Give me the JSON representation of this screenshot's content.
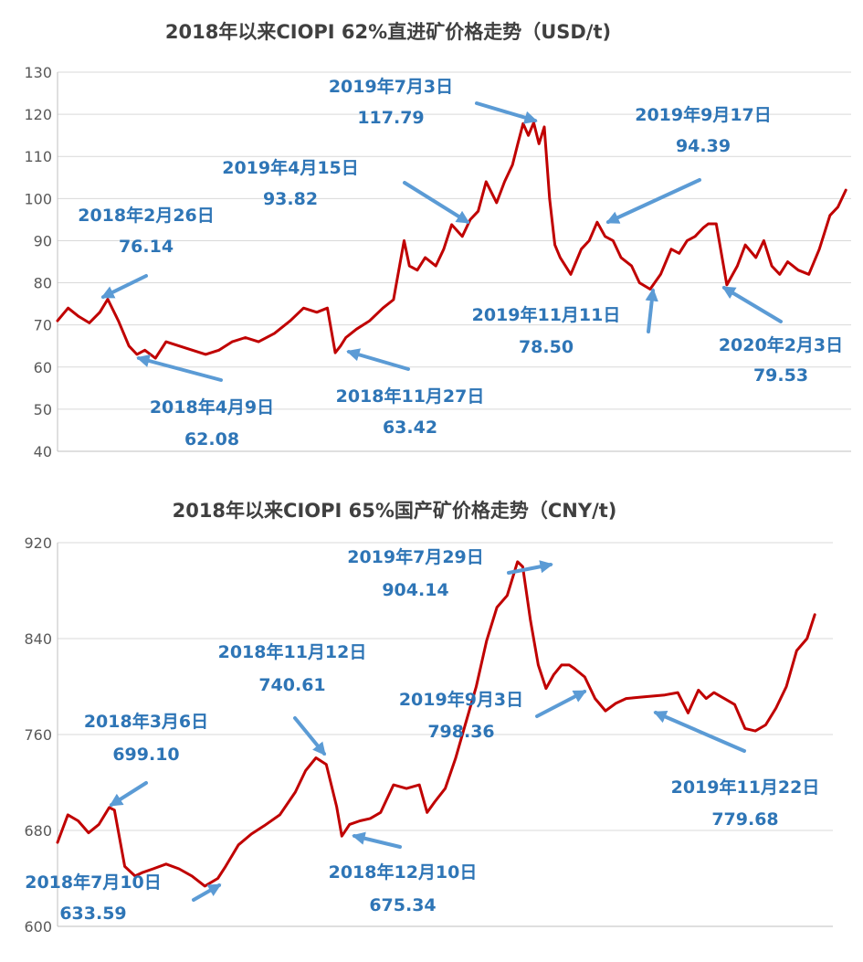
{
  "colors": {
    "series": "#C00000",
    "annotation": "#2E75B6",
    "arrow": "#5B9BD5",
    "grid": "#D9D9D9",
    "title": "#404040"
  },
  "chart_data": [
    {
      "type": "line",
      "title": "2018年以来CIOPI 62%直进矿价格走势（USD/t)",
      "xlabel": "",
      "ylabel": "",
      "ylim": [
        40,
        130
      ],
      "yticks": [
        40,
        50,
        60,
        70,
        80,
        90,
        100,
        110,
        120,
        130
      ],
      "grid": true,
      "x_unit": "months since 2018-01",
      "series": [
        {
          "x": [
            0.0,
            0.4,
            0.8,
            1.2,
            1.6,
            1.9,
            2.3,
            2.7,
            3.0,
            3.3,
            3.7,
            4.1,
            4.6,
            5.1,
            5.6,
            6.1,
            6.6,
            7.1,
            7.6,
            8.2,
            8.8,
            9.3,
            9.8,
            10.2,
            10.5,
            10.7,
            10.9,
            11.3,
            11.8,
            12.3,
            12.7,
            13.1,
            13.3,
            13.6,
            13.9,
            14.3,
            14.6,
            14.9,
            15.3,
            15.6,
            15.9,
            16.2,
            16.6,
            16.9,
            17.2,
            17.4,
            17.6,
            17.8,
            18.0,
            18.2,
            18.4,
            18.6,
            18.8,
            19.0,
            19.4,
            19.8,
            20.1,
            20.4,
            20.7,
            21.0,
            21.3,
            21.7,
            22.0,
            22.4,
            22.8,
            23.0,
            23.2,
            23.5,
            23.8,
            24.1,
            24.4,
            24.6,
            24.9,
            25.3,
            25.7,
            26.0,
            26.4,
            26.7,
            27.0,
            27.3,
            27.6,
            28.0,
            28.4,
            28.8,
            29.2,
            29.5,
            29.8
          ],
          "values": [
            71.0,
            74.0,
            72.0,
            70.5,
            73.0,
            76.1,
            71.0,
            65.0,
            63.0,
            64.0,
            62.1,
            66.0,
            65.0,
            64.0,
            63.0,
            64.0,
            66.0,
            67.0,
            66.0,
            68.0,
            71.0,
            74.0,
            73.0,
            74.0,
            63.4,
            65.0,
            67.0,
            69.0,
            71.0,
            74.0,
            76.0,
            90.0,
            84.0,
            83.0,
            86.0,
            84.0,
            88.0,
            93.8,
            91.0,
            95.0,
            97.0,
            104.0,
            99.0,
            104.0,
            108.0,
            113.0,
            117.8,
            115.0,
            118.0,
            113.0,
            117.0,
            100.0,
            89.0,
            86.0,
            82.0,
            88.0,
            90.0,
            94.4,
            91.0,
            90.0,
            86.0,
            84.0,
            80.0,
            78.5,
            82.0,
            85.0,
            88.0,
            87.0,
            90.0,
            91.0,
            93.0,
            94.0,
            94.0,
            79.5,
            84.0,
            89.0,
            86.0,
            90.0,
            84.0,
            82.0,
            85.0,
            83.0,
            82.0,
            88.0,
            96.0,
            98.0,
            102.0
          ]
        }
      ],
      "annotations": [
        {
          "label": "2018年2月26日",
          "value": "76.14"
        },
        {
          "label": "2018年4月9日",
          "value": "62.08"
        },
        {
          "label": "2018年11月27日",
          "value": "63.42"
        },
        {
          "label": "2019年4月15日",
          "value": "93.82"
        },
        {
          "label": "2019年7月3日",
          "value": "117.79"
        },
        {
          "label": "2019年9月17日",
          "value": "94.39"
        },
        {
          "label": "2019年11月11日",
          "value": "78.50"
        },
        {
          "label": "2020年2月3日",
          "value": "79.53"
        }
      ]
    },
    {
      "type": "line",
      "title": "2018年以来CIOPI 65%国产矿价格走势（CNY/t)",
      "xlabel": "",
      "ylabel": "",
      "ylim": [
        600,
        920
      ],
      "yticks": [
        600,
        680,
        760,
        840,
        920
      ],
      "grid": true,
      "x_unit": "months since 2018-01",
      "series": [
        {
          "x": [
            0.0,
            0.4,
            0.8,
            1.2,
            1.6,
            2.0,
            2.2,
            2.6,
            3.0,
            3.3,
            3.7,
            4.2,
            4.7,
            5.2,
            5.7,
            6.2,
            6.5,
            7.0,
            7.5,
            8.0,
            8.6,
            9.2,
            9.6,
            10.0,
            10.4,
            10.8,
            11.0,
            11.3,
            11.7,
            12.1,
            12.5,
            13.0,
            13.5,
            14.0,
            14.3,
            14.6,
            15.0,
            15.4,
            15.8,
            16.2,
            16.6,
            17.0,
            17.4,
            17.8,
            18.0,
            18.3,
            18.6,
            18.9,
            19.2,
            19.5,
            19.8,
            20.0,
            20.4,
            20.8,
            21.2,
            21.6,
            22.0,
            22.5,
            23.0,
            23.5,
            24.0,
            24.4,
            24.8,
            25.1,
            25.4,
            25.8,
            26.2,
            26.6,
            27.0,
            27.4,
            27.8,
            28.2,
            28.6,
            29.0,
            29.3
          ],
          "values": [
            670.0,
            693.0,
            688.0,
            678.0,
            685.0,
            699.1,
            697.0,
            650.0,
            642.0,
            645.0,
            648.0,
            652.0,
            648.0,
            642.0,
            633.6,
            640.0,
            650.0,
            668.0,
            677.0,
            684.0,
            693.0,
            712.0,
            730.0,
            740.6,
            735.0,
            700.0,
            675.3,
            685.0,
            688.0,
            690.0,
            695.0,
            718.0,
            715.0,
            718.0,
            695.0,
            704.0,
            715.0,
            740.0,
            770.0,
            800.0,
            838.0,
            866.0,
            876.0,
            904.1,
            900.0,
            855.0,
            818.0,
            798.4,
            810.0,
            818.0,
            818.0,
            815.0,
            808.0,
            790.0,
            779.7,
            786.0,
            790.0,
            791.0,
            792.0,
            793.0,
            795.0,
            778.0,
            797.0,
            790.0,
            795.0,
            790.0,
            785.0,
            765.0,
            763.0,
            768.0,
            782.0,
            800.0,
            830.0,
            840.0,
            860.0
          ]
        }
      ],
      "annotations": [
        {
          "label": "2018年3月6日",
          "value": "699.10"
        },
        {
          "label": "2018年7月10日",
          "value": "633.59"
        },
        {
          "label": "2018年11月12日",
          "value": "740.61"
        },
        {
          "label": "2018年12月10日",
          "value": "675.34"
        },
        {
          "label": "2019年7月29日",
          "value": "904.14"
        },
        {
          "label": "2019年9月3日",
          "value": "798.36"
        },
        {
          "label": "2019年11月22日",
          "value": "779.68"
        }
      ]
    }
  ]
}
